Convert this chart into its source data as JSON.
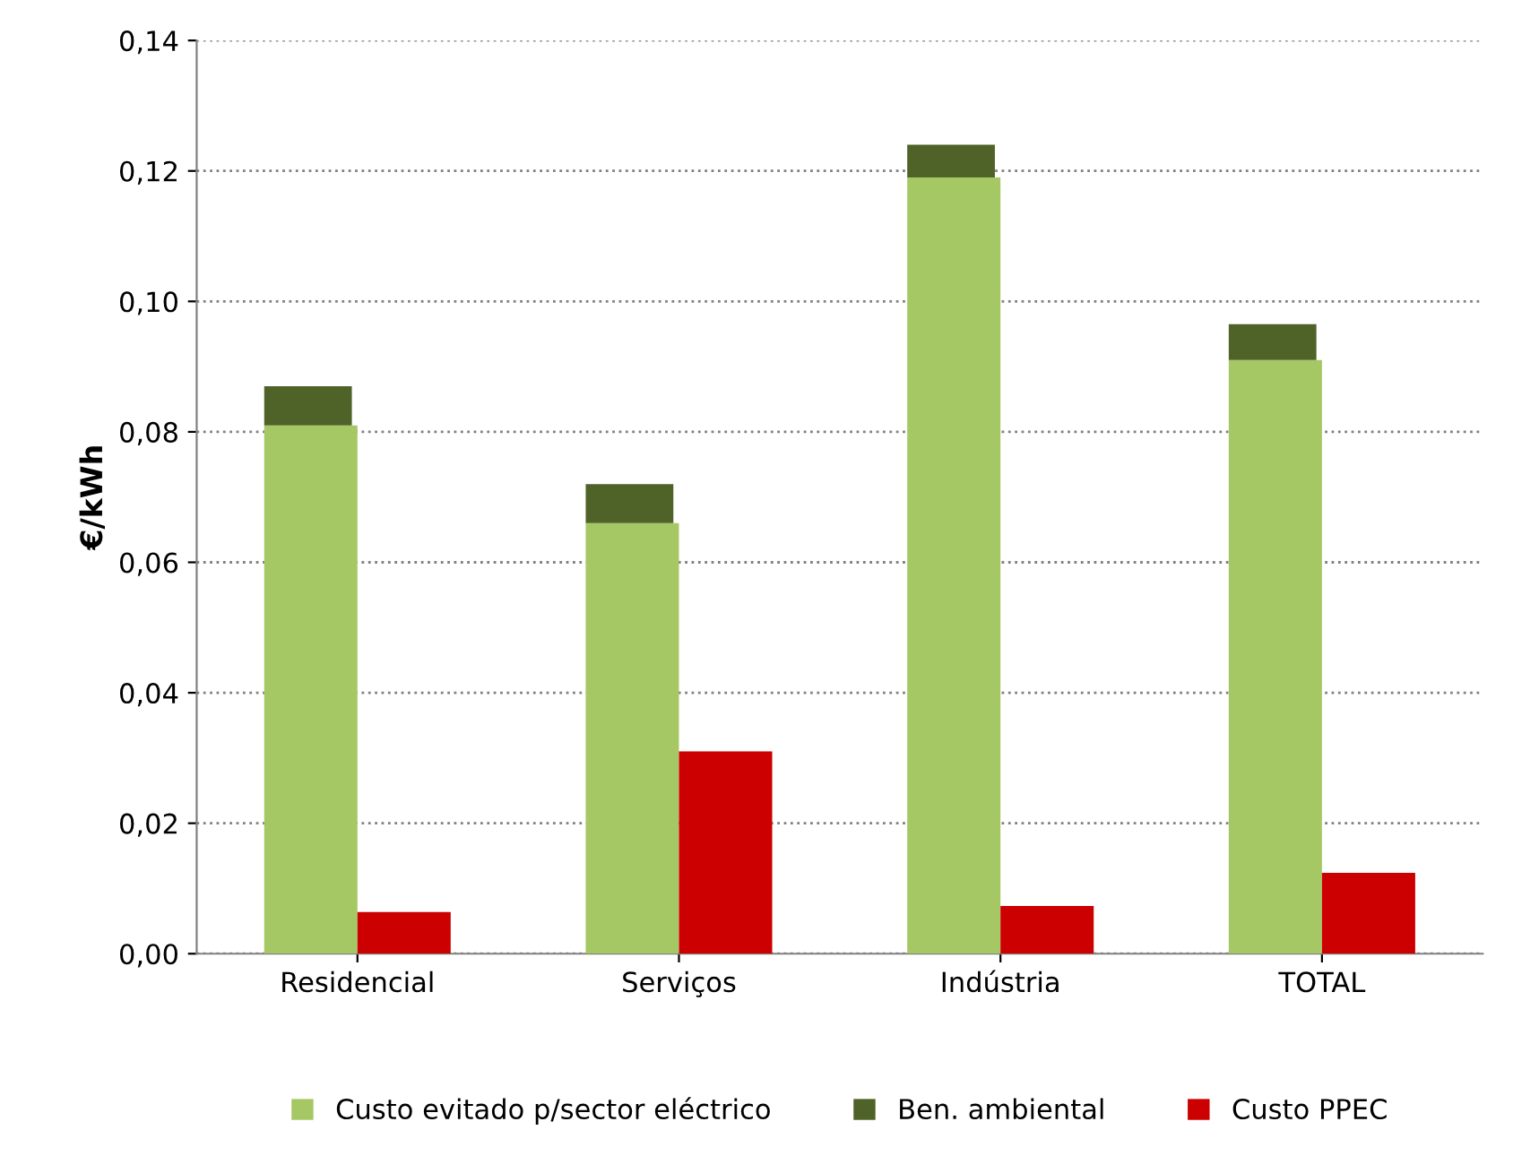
{
  "chart_data": {
    "type": "bar",
    "categories": [
      "Residencial",
      "Serviços",
      "Indústria",
      "TOTAL"
    ],
    "series": [
      {
        "name": "Custo evitado p/sector eléctrico",
        "color": "#a6c864",
        "values": [
          0.081,
          0.066,
          0.119,
          0.091
        ]
      },
      {
        "name": "Ben. ambiental",
        "color": "#4f6228",
        "values": [
          0.006,
          0.006,
          0.005,
          0.0055
        ],
        "base": [
          0.081,
          0.066,
          0.119,
          0.091
        ]
      },
      {
        "name": "Custo PPEC",
        "color": "#cc0000",
        "values": [
          0.0064,
          0.031,
          0.0073,
          0.0124
        ]
      }
    ],
    "ylabel": "€/kWh",
    "ylim": [
      0,
      0.14
    ],
    "yticks": [
      {
        "value": 0,
        "label": "0,00"
      },
      {
        "value": 0.02,
        "label": "0,02"
      },
      {
        "value": 0.04,
        "label": "0,04"
      },
      {
        "value": 0.06,
        "label": "0,06"
      },
      {
        "value": 0.08,
        "label": "0,08"
      },
      {
        "value": 0.1,
        "label": "0,10"
      },
      {
        "value": 0.12,
        "label": "0,12"
      },
      {
        "value": 0.14,
        "label": "0,14"
      }
    ],
    "grid": "y",
    "legend": "bottom"
  }
}
